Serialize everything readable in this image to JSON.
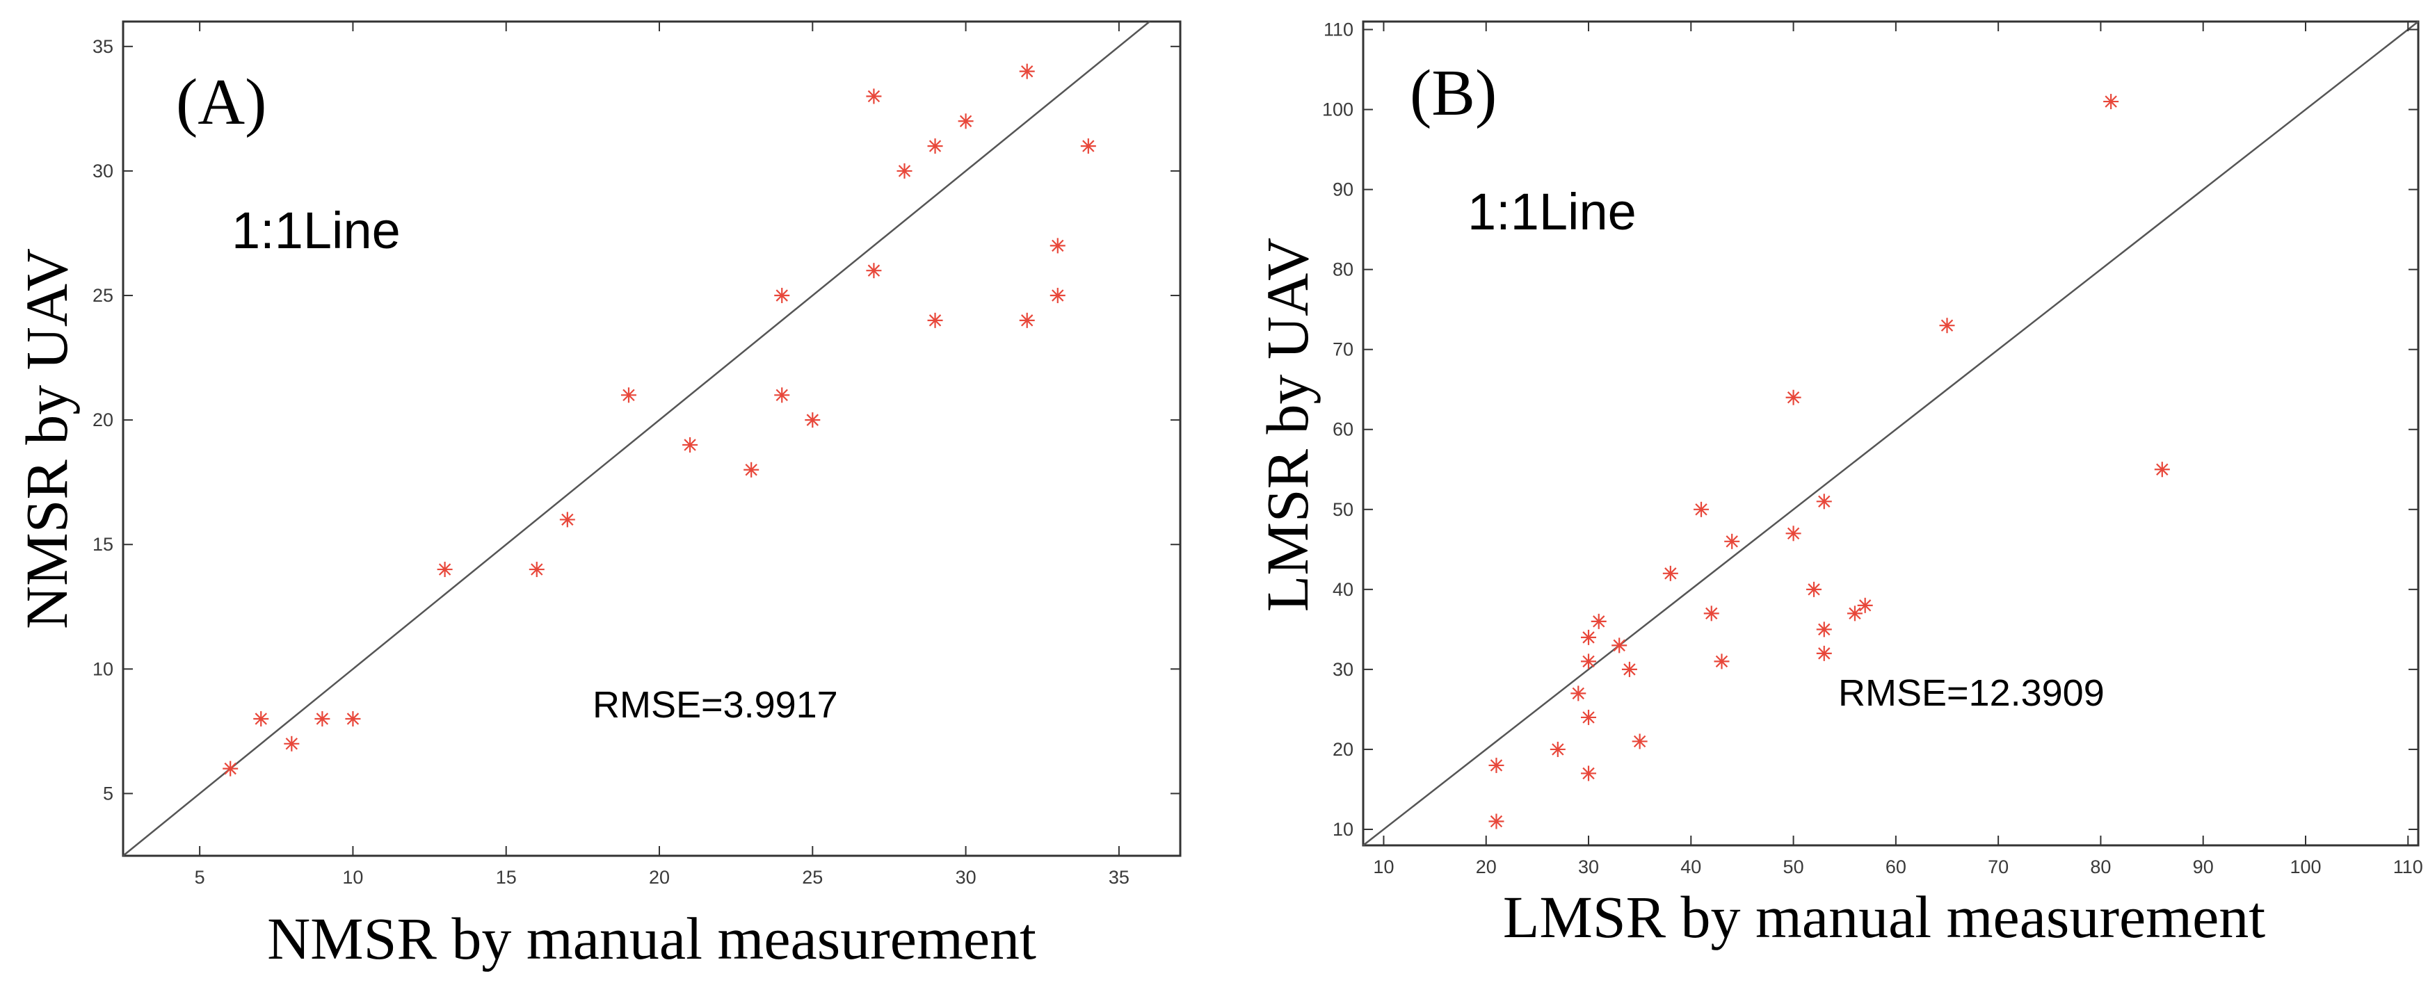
{
  "chart_data": [
    {
      "type": "scatter",
      "panel_label": "(A)",
      "xlabel": "NMSR by manual measurement",
      "ylabel": "NMSR by UAV",
      "xlim": [
        2.5,
        37
      ],
      "ylim": [
        2.5,
        36
      ],
      "xticks": [
        5,
        10,
        15,
        20,
        25,
        30,
        35
      ],
      "yticks": [
        5,
        10,
        15,
        20,
        25,
        30,
        35
      ],
      "reference_line": "1:1",
      "reference_label": "1:1Line",
      "annotation": "RMSE=3.9917",
      "marker_color": "#e8473a",
      "line_color": "#555555",
      "points": [
        [
          6,
          6
        ],
        [
          7,
          8
        ],
        [
          8,
          7
        ],
        [
          9,
          8
        ],
        [
          10,
          8
        ],
        [
          13,
          14
        ],
        [
          16,
          14
        ],
        [
          17,
          16
        ],
        [
          19,
          21
        ],
        [
          21,
          19
        ],
        [
          23,
          18
        ],
        [
          24,
          21
        ],
        [
          24,
          25
        ],
        [
          25,
          20
        ],
        [
          27,
          26
        ],
        [
          27,
          33
        ],
        [
          28,
          30
        ],
        [
          29,
          31
        ],
        [
          29,
          24
        ],
        [
          30,
          32
        ],
        [
          32,
          34
        ],
        [
          32,
          24
        ],
        [
          33,
          27
        ],
        [
          33,
          25
        ],
        [
          34,
          31
        ]
      ]
    },
    {
      "type": "scatter",
      "panel_label": "(B)",
      "xlabel": "LMSR by manual measurement",
      "ylabel": "LMSR by UAV",
      "xlim": [
        8,
        111
      ],
      "ylim": [
        8,
        111
      ],
      "xticks": [
        10,
        20,
        30,
        40,
        50,
        60,
        70,
        80,
        90,
        100,
        110
      ],
      "yticks": [
        10,
        20,
        30,
        40,
        50,
        60,
        70,
        80,
        90,
        100,
        110
      ],
      "reference_line": "1:1",
      "reference_label": "1:1Line",
      "annotation": "RMSE=12.3909",
      "marker_color": "#e8473a",
      "line_color": "#555555",
      "points": [
        [
          21,
          18
        ],
        [
          21,
          11
        ],
        [
          27,
          20
        ],
        [
          29,
          27
        ],
        [
          30,
          34
        ],
        [
          30,
          31
        ],
        [
          30,
          24
        ],
        [
          30,
          17
        ],
        [
          31,
          36
        ],
        [
          33,
          33
        ],
        [
          34,
          30
        ],
        [
          35,
          21
        ],
        [
          38,
          42
        ],
        [
          41,
          50
        ],
        [
          42,
          37
        ],
        [
          43,
          31
        ],
        [
          44,
          46
        ],
        [
          50,
          64
        ],
        [
          50,
          47
        ],
        [
          52,
          40
        ],
        [
          53,
          51
        ],
        [
          53,
          35
        ],
        [
          53,
          32
        ],
        [
          56,
          37
        ],
        [
          57,
          38
        ],
        [
          65,
          73
        ],
        [
          81,
          101
        ],
        [
          86,
          55
        ]
      ]
    }
  ]
}
